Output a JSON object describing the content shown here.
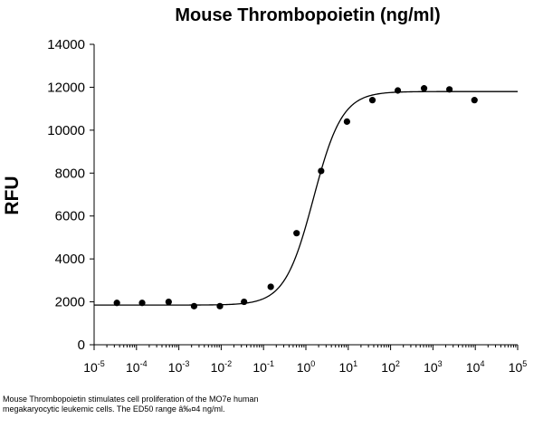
{
  "chart_data": {
    "type": "scatter",
    "title": "Mouse Thrombopoietin (ng/ml)",
    "xlabel": "",
    "ylabel": "RFU",
    "x_scale": "log",
    "xlim": [
      1e-05,
      100000
    ],
    "ylim": [
      0,
      14000
    ],
    "x_ticks": [
      {
        "base": "10",
        "exp": "-5",
        "value": 1e-05
      },
      {
        "base": "10",
        "exp": "-4",
        "value": 0.0001
      },
      {
        "base": "10",
        "exp": "-3",
        "value": 0.001
      },
      {
        "base": "10",
        "exp": "-2",
        "value": 0.01
      },
      {
        "base": "10",
        "exp": "-1",
        "value": 0.1
      },
      {
        "base": "10",
        "exp": "0",
        "value": 1
      },
      {
        "base": "10",
        "exp": "1",
        "value": 10
      },
      {
        "base": "10",
        "exp": "2",
        "value": 100
      },
      {
        "base": "10",
        "exp": "3",
        "value": 1000
      },
      {
        "base": "10",
        "exp": "4",
        "value": 10000
      },
      {
        "base": "10",
        "exp": "5",
        "value": 100000
      }
    ],
    "y_ticks": [
      "0",
      "2000",
      "4000",
      "6000",
      "8000",
      "10000",
      "12000",
      "14000"
    ],
    "grid": false,
    "legend": "none",
    "series": [
      {
        "points": [
          {
            "x": 3.45e-05,
            "y": 1950
          },
          {
            "x": 0.000136,
            "y": 1950
          },
          {
            "x": 0.000575,
            "y": 2000
          },
          {
            "x": 0.00229,
            "y": 1800
          },
          {
            "x": 0.00933,
            "y": 1800
          },
          {
            "x": 0.0347,
            "y": 2000
          },
          {
            "x": 0.148,
            "y": 2700
          },
          {
            "x": 0.603,
            "y": 5200
          },
          {
            "x": 2.29,
            "y": 8100
          },
          {
            "x": 9.33,
            "y": 10400
          },
          {
            "x": 37.2,
            "y": 11400
          },
          {
            "x": 148,
            "y": 11850
          },
          {
            "x": 617,
            "y": 11950
          },
          {
            "x": 2450,
            "y": 11900
          },
          {
            "x": 9550,
            "y": 11400
          }
        ],
        "fit": {
          "model": "4PL",
          "bottom": 1850,
          "top": 11800,
          "ec50": 1.51,
          "hill": 1.28
        }
      }
    ],
    "colors": {
      "points": "#000000",
      "curve": "#000000",
      "axes": "#000000"
    }
  },
  "caption": {
    "line1": "Mouse Thrombopoietin stimulates cell proliferation of the MO7e human",
    "line2": "megakaryocytic leukemic cells. The ED50 range â‰¤4 ng/ml."
  }
}
